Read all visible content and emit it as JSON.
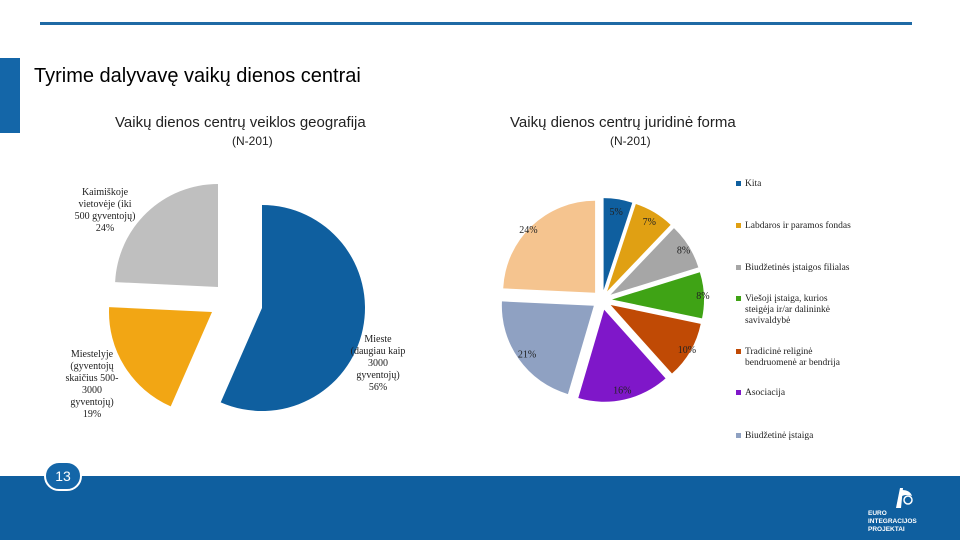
{
  "slide": {
    "title": "Tyrime dalyvavę vaikų dienos centrai",
    "page_number": "13"
  },
  "colors": {
    "accent": "#1466a8",
    "footer": "#0f5f9f"
  },
  "logo": {
    "icon": "euro-integracijos-logo-icon",
    "line1": "EURO",
    "line2": "INTEGRACIJOS",
    "line3": "PROJEKTAI"
  },
  "chart_data": [
    {
      "type": "pie",
      "title": "Vaikų dienos centrų veiklos geografija",
      "subtitle": "(N-201)",
      "legend": "none",
      "slices": [
        {
          "label": "Mieste (daugiau kaip 3000 gyventojų) 56%",
          "value": 56,
          "color": "#0f5f9f"
        },
        {
          "label": "Miestelyje (gyventojų skaičius 500-3000 gyventojų) 19%",
          "value": 19,
          "color": "#f2a614"
        },
        {
          "label": "Kaimiškoje vietovėje (iki 500 gyventojų) 24%",
          "value": 24,
          "color": "#bfbfbf"
        }
      ]
    },
    {
      "type": "pie",
      "title": "Vaikų dienos centrų juridinė forma",
      "subtitle": "(N-201)",
      "legend": "right",
      "slices": [
        {
          "label": "Kita",
          "value": 5,
          "value_label": "5%",
          "color": "#0f5f9f"
        },
        {
          "label": "Labdaros ir paramos fondas",
          "value": 7,
          "value_label": "7%",
          "color": "#e0a013"
        },
        {
          "label": "Biudžetinės įstaigos filialas",
          "value": 8,
          "value_label": "8%",
          "color": "#a6a6a6"
        },
        {
          "label": "Viešoji įstaiga, kurios steigėja ir/ar dalininkė savivaldybė",
          "value": 8,
          "value_label": "8%",
          "color": "#3fa315"
        },
        {
          "label": "Tradicinė religinė bendruomenė ar bendrija",
          "value": 10,
          "value_label": "10%",
          "color": "#c04a05"
        },
        {
          "label": "Asociacija",
          "value": 16,
          "value_label": "16%",
          "color": "#7f17c9"
        },
        {
          "label": "Biudžetinė įstaiga",
          "value": 21,
          "value_label": "21%",
          "color": "#8fa1c2"
        },
        {
          "label": "",
          "value": 24,
          "value_label": "24%",
          "color": "#f5c48f"
        }
      ]
    }
  ],
  "pie1_labels": {
    "rural": [
      "Kaimiškoje",
      "vietovėje (iki",
      "500 gyventojų)",
      "24%"
    ],
    "town": [
      "Miestelyje",
      "(gyventojų",
      "skaičius 500-",
      "3000",
      "gyventojų)",
      "19%"
    ],
    "city": [
      "Mieste",
      "(daugiau kaip",
      "3000",
      "gyventojų)",
      "56%"
    ]
  },
  "pie2_legend": [
    {
      "lines": [
        "Kita"
      ]
    },
    {
      "lines": [
        "Labdaros ir paramos fondas"
      ]
    },
    {
      "lines": [
        "Biudžetinės įstaigos filialas"
      ]
    },
    {
      "lines": [
        "Viešoji įstaiga, kurios",
        "steigėja ir/ar dalininkė",
        "savivaldybė"
      ]
    },
    {
      "lines": [
        "Tradicinė religinė",
        "bendruomenė ar bendrija"
      ]
    },
    {
      "lines": [
        "Asociacija"
      ]
    },
    {
      "lines": [
        "Biudžetinė įstaiga"
      ]
    }
  ]
}
